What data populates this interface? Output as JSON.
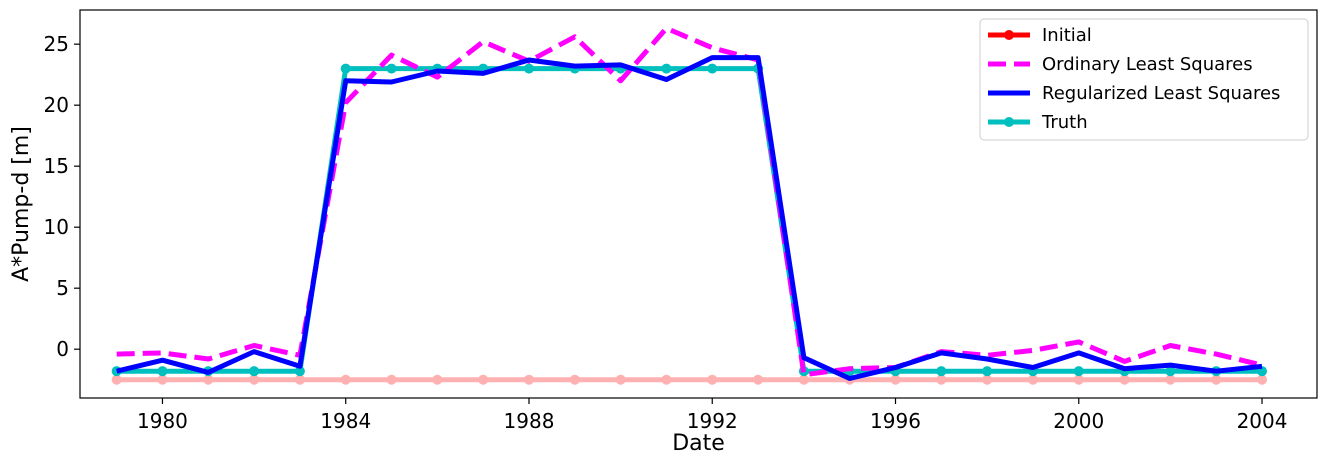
{
  "chart_data": {
    "type": "line",
    "xlabel": "Date",
    "ylabel": "A*Pump-d [m]",
    "xlim": [
      1978.2,
      2005.2
    ],
    "ylim": [
      -4,
      27.8
    ],
    "xticks": [
      1980,
      1984,
      1988,
      1992,
      1996,
      2000,
      2004
    ],
    "yticks": [
      0,
      5,
      10,
      15,
      20,
      25
    ],
    "legend_position": "top-right",
    "x": [
      1979,
      1980,
      1981,
      1982,
      1983,
      1984,
      1985,
      1986,
      1987,
      1988,
      1989,
      1990,
      1991,
      1992,
      1993,
      1994,
      1995,
      1996,
      1997,
      1998,
      1999,
      2000,
      2001,
      2002,
      2003,
      2004
    ],
    "series": [
      {
        "name": "Initial",
        "color": "#ff0000",
        "style": "solid",
        "marker": true,
        "values": [
          -2.5,
          -2.5,
          -2.5,
          -2.5,
          -2.5,
          -2.5,
          -2.5,
          -2.5,
          -2.5,
          -2.5,
          -2.5,
          -2.5,
          -2.5,
          -2.5,
          -2.5,
          -2.5,
          -2.5,
          -2.5,
          -2.5,
          -2.5,
          -2.5,
          -2.5,
          -2.5,
          -2.5,
          -2.5,
          -2.5
        ]
      },
      {
        "name": "Ordinary Least Squares",
        "color": "#ff00ff",
        "style": "dashed",
        "marker": false,
        "values": [
          -0.4,
          -0.3,
          -0.8,
          0.3,
          -0.5,
          20.2,
          24.1,
          22.3,
          25.2,
          23.6,
          25.6,
          22.0,
          26.3,
          24.7,
          23.7,
          -2.1,
          -1.6,
          -1.5,
          -0.2,
          -0.5,
          -0.1,
          0.6,
          -1.0,
          0.3,
          -0.4,
          -1.3
        ]
      },
      {
        "name": "Regularized Least Squares",
        "color": "#0000ff",
        "style": "solid",
        "marker": false,
        "values": [
          -1.8,
          -0.9,
          -1.9,
          -0.2,
          -1.4,
          22.0,
          21.9,
          22.8,
          22.6,
          23.7,
          23.2,
          23.3,
          22.1,
          23.9,
          23.9,
          -0.7,
          -2.4,
          -1.5,
          -0.3,
          -0.8,
          -1.5,
          -0.3,
          -1.6,
          -1.3,
          -1.8,
          -1.4
        ]
      },
      {
        "name": "Truth",
        "color": "#00bfbf",
        "style": "solid",
        "marker": true,
        "values": [
          -1.8,
          -1.8,
          -1.8,
          -1.8,
          -1.8,
          23.0,
          23.0,
          23.0,
          23.0,
          23.0,
          23.0,
          23.0,
          23.0,
          23.0,
          23.0,
          -1.8,
          -1.8,
          -1.8,
          -1.8,
          -1.8,
          -1.8,
          -1.8,
          -1.8,
          -1.8,
          -1.8,
          -1.8
        ]
      }
    ]
  }
}
